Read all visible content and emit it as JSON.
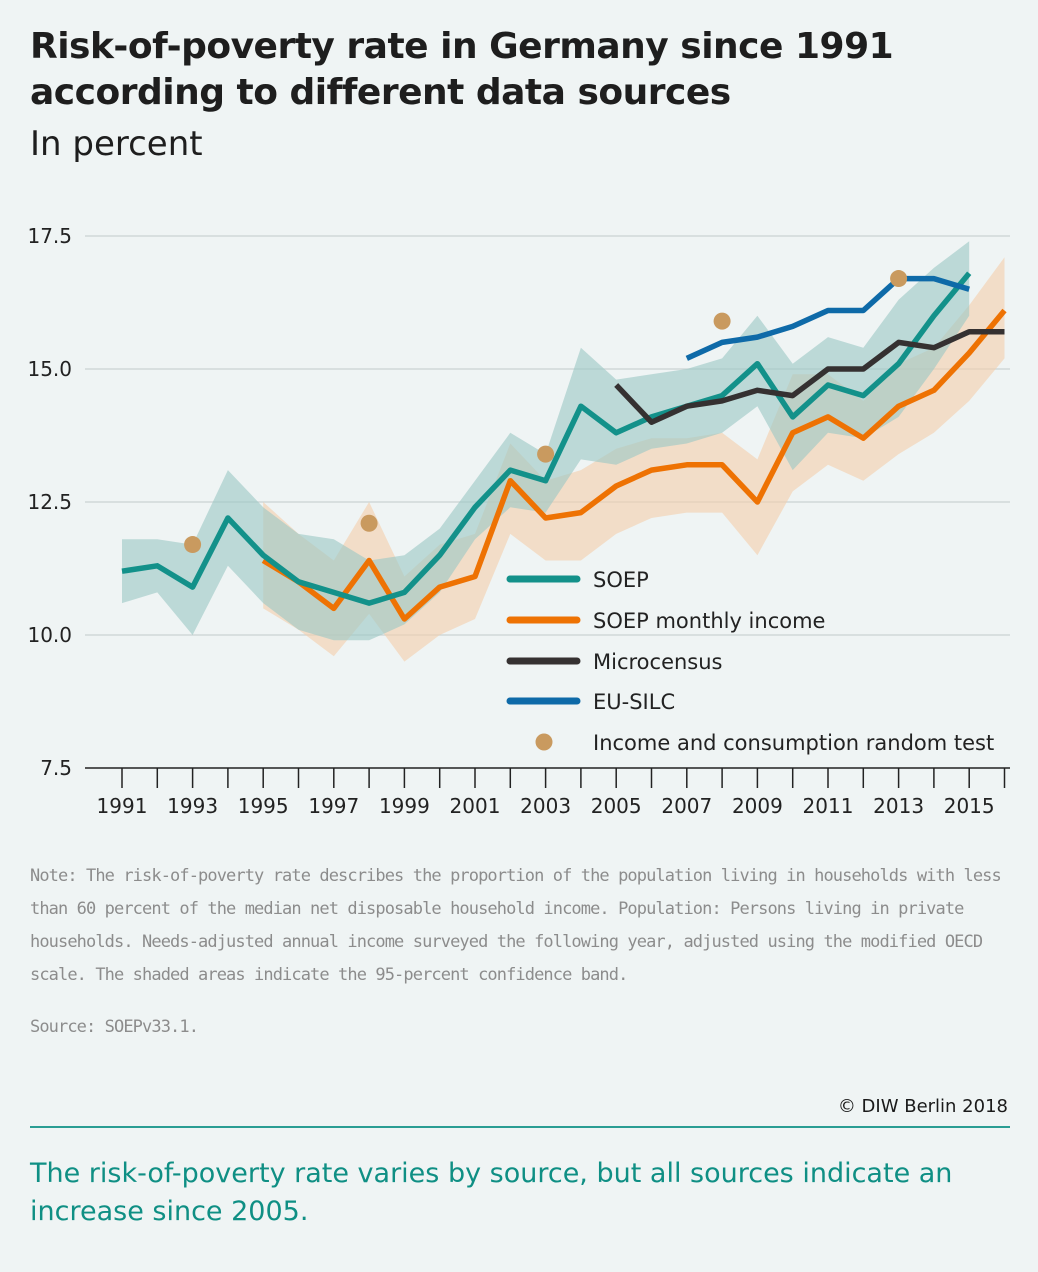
{
  "title": "Risk-of-poverty rate in Germany since 1991 according to different data sources",
  "subtitle": "In percent",
  "note": "Note: The risk-of-poverty rate describes the proportion of the population living in households with less than 60 percent of the median net disposable household income. Population: Persons living in private households. Needs-adjusted annual income surveyed the following year, adjusted using the modified OECD scale. The shaded areas indicate the 95-percent confidence band.",
  "source": "Source: SOEPv33.1.",
  "copyright": "© DIW Berlin 2018",
  "caption": "The risk-of-poverty rate varies by source, but all sources indicate an increase since 2005.",
  "chart_data": {
    "type": "line",
    "title": "Risk-of-poverty rate in Germany since 1991 according to different data sources",
    "ylabel": "In percent",
    "xlim": [
      1990.5,
      2016.2
    ],
    "ylim": [
      7.5,
      17.5
    ],
    "yticks": [
      7.5,
      10.0,
      12.5,
      15.0,
      17.5
    ],
    "ytick_labels": [
      "7.5",
      "10.0",
      "12.5",
      "15.0",
      "17.5"
    ],
    "xticks": [
      1991,
      1993,
      1995,
      1997,
      1999,
      2001,
      2003,
      2005,
      2007,
      2009,
      2011,
      2013,
      2015
    ],
    "xtick_labels": [
      "1991",
      "1993",
      "1995",
      "1997",
      "1999",
      "2001",
      "2003",
      "2005",
      "2007",
      "2009",
      "2011",
      "2013",
      "2015"
    ],
    "grid": "horizontal",
    "legend_position": "inside-lower-right",
    "series": [
      {
        "name": "SOEP",
        "color": "#13918a",
        "band_color": "#9cc8c5",
        "x": [
          1991,
          1992,
          1993,
          1994,
          1995,
          1996,
          1997,
          1998,
          1999,
          2000,
          2001,
          2002,
          2003,
          2004,
          2005,
          2006,
          2007,
          2008,
          2009,
          2010,
          2011,
          2012,
          2013,
          2014,
          2015
        ],
        "y": [
          11.2,
          11.3,
          10.9,
          12.2,
          11.5,
          11.0,
          10.8,
          10.6,
          10.8,
          11.5,
          12.4,
          13.1,
          12.9,
          14.3,
          13.8,
          14.1,
          14.3,
          14.5,
          15.1,
          14.1,
          14.7,
          14.5,
          15.1,
          16.0,
          16.8
        ],
        "lower": [
          10.6,
          10.8,
          10.0,
          11.3,
          10.6,
          10.1,
          9.9,
          9.9,
          10.2,
          10.8,
          11.8,
          12.4,
          12.3,
          13.3,
          13.2,
          13.5,
          13.6,
          13.8,
          14.3,
          13.1,
          13.8,
          13.7,
          14.1,
          15.0,
          16.0
        ],
        "upper": [
          11.8,
          11.8,
          11.7,
          13.1,
          12.4,
          11.9,
          11.8,
          11.4,
          11.5,
          12.0,
          12.9,
          13.8,
          13.4,
          15.4,
          14.8,
          14.9,
          15.0,
          15.2,
          16.0,
          15.1,
          15.6,
          15.4,
          16.3,
          16.9,
          17.4
        ]
      },
      {
        "name": "SOEP monthly income",
        "color": "#ee7203",
        "band_color": "#f3cfac",
        "x": [
          1995,
          1996,
          1997,
          1998,
          1999,
          2000,
          2001,
          2002,
          2003,
          2004,
          2005,
          2006,
          2007,
          2008,
          2009,
          2010,
          2011,
          2012,
          2013,
          2014,
          2015,
          2016
        ],
        "y": [
          11.4,
          11.0,
          10.5,
          11.4,
          10.3,
          10.9,
          11.1,
          12.9,
          12.2,
          12.3,
          12.8,
          13.1,
          13.2,
          13.2,
          12.5,
          13.8,
          14.1,
          13.7,
          14.3,
          14.6,
          15.3,
          16.1
        ],
        "lower": [
          10.5,
          10.1,
          9.6,
          10.4,
          9.5,
          10.0,
          10.3,
          11.9,
          11.4,
          11.4,
          11.9,
          12.2,
          12.3,
          12.3,
          11.5,
          12.7,
          13.2,
          12.9,
          13.4,
          13.8,
          14.4,
          15.2
        ],
        "upper": [
          12.5,
          11.9,
          11.4,
          12.5,
          11.1,
          11.7,
          11.9,
          13.6,
          12.9,
          13.1,
          13.5,
          13.7,
          13.7,
          13.8,
          13.3,
          14.9,
          14.9,
          14.4,
          15.1,
          15.4,
          16.2,
          17.1
        ]
      },
      {
        "name": "Microcensus",
        "color": "#353131",
        "x": [
          2005,
          2006,
          2007,
          2008,
          2009,
          2010,
          2011,
          2012,
          2013,
          2014,
          2015,
          2016
        ],
        "y": [
          14.7,
          14.0,
          14.3,
          14.4,
          14.6,
          14.5,
          15.0,
          15.0,
          15.5,
          15.4,
          15.7,
          15.7
        ]
      },
      {
        "name": "EU-SILC",
        "color": "#0e6aa8",
        "x": [
          2007,
          2008,
          2009,
          2010,
          2011,
          2012,
          2013,
          2014,
          2015
        ],
        "y": [
          15.2,
          15.5,
          15.6,
          15.8,
          16.1,
          16.1,
          16.7,
          16.7,
          16.5
        ]
      },
      {
        "name": "Income and consumption random test",
        "color": "#c99a5f",
        "marker": "dot",
        "x": [
          1993,
          1998,
          2003,
          2008,
          2013
        ],
        "y": [
          11.7,
          12.1,
          13.4,
          15.9,
          16.7
        ]
      }
    ]
  }
}
